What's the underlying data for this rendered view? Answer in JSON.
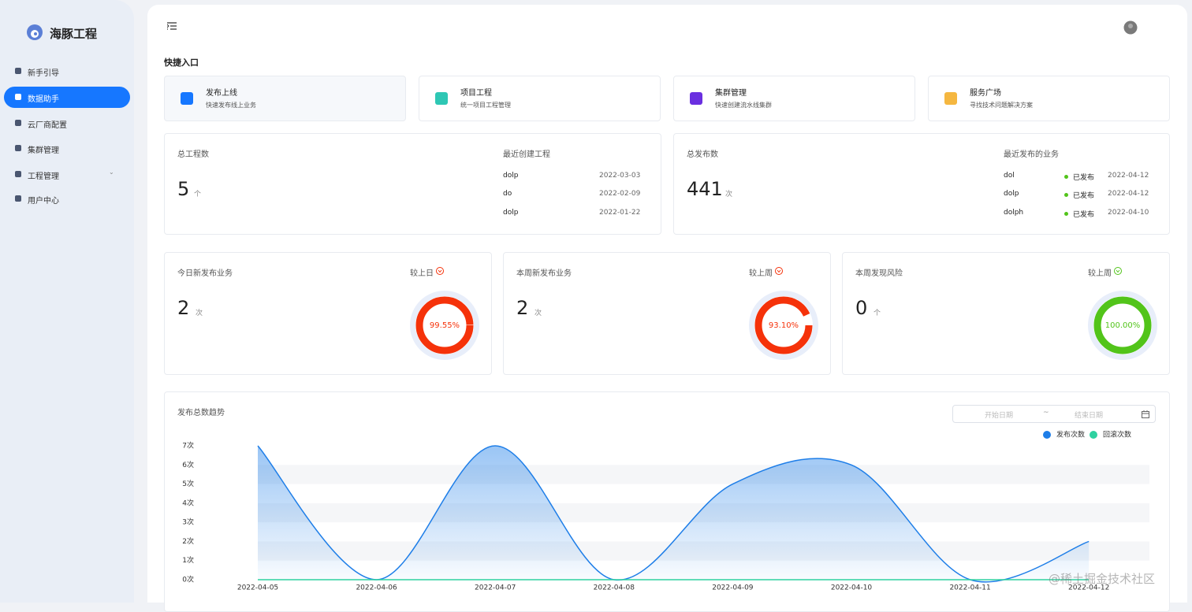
{
  "sidebar": {
    "logo": "海豚工程",
    "menu": [
      "新手引导",
      "数据助手",
      "云厂商配置",
      "集群管理",
      "工程管理",
      "用户中心"
    ]
  },
  "quick": {
    "title": "快捷入口",
    "cards": [
      {
        "title": "发布上线",
        "desc": "快速发布线上业务"
      },
      {
        "title": "项目工程",
        "desc": "统一项目工程管理"
      },
      {
        "title": "集群管理",
        "desc": "快速创建流水线集群"
      },
      {
        "title": "服务广场",
        "desc": "寻找技术问题解决方案"
      }
    ]
  },
  "projects": {
    "label": "总工程数",
    "value": 5,
    "unit": "个",
    "recent_label": "最近创建工程",
    "recent": [
      {
        "name": "dolp",
        "date": "2022-03-03"
      },
      {
        "name": "do",
        "date": "2022-02-09"
      },
      {
        "name": "dolp",
        "date": "2022-01-22"
      }
    ]
  },
  "releases": {
    "label": "总发布数",
    "value": 441,
    "unit": "次",
    "recent_label": "最近发布的业务",
    "recent": [
      {
        "name": "dol",
        "status": "已发布",
        "date": "2022-04-12"
      },
      {
        "name": "dolp",
        "status": "已发布",
        "date": "2022-04-12"
      },
      {
        "name": "dolph",
        "status": "已发布",
        "date": "2022-04-10"
      }
    ]
  },
  "rings": [
    {
      "label": "今日新发布业务",
      "value": 2,
      "unit": "次",
      "compare": "较上日",
      "percent": 99.55,
      "percent_label": "99.55%",
      "color": "#f5320a"
    },
    {
      "label": "本周新发布业务",
      "value": 2,
      "unit": "次",
      "compare": "较上周",
      "percent": 93.1,
      "percent_label": "93.10%",
      "color": "#f5320a"
    },
    {
      "label": "本周发现风险",
      "value": 0,
      "unit": "个",
      "compare": "较上周",
      "percent": 100,
      "percent_label": "100.00%",
      "color": "#52c41a"
    }
  ],
  "date_range": {
    "start": "开始日期",
    "separator": "~",
    "end": "结束日期"
  },
  "watermark": "@稀土掘金技术社区",
  "chart_data": {
    "type": "line",
    "title": "发布总数趋势",
    "categories": [
      "2022-04-05",
      "2022-04-06",
      "2022-04-07",
      "2022-04-08",
      "2022-04-09",
      "2022-04-10",
      "2022-04-11",
      "2022-04-12"
    ],
    "series": [
      {
        "name": "发布次数",
        "color": "#1e7ee8",
        "values": [
          7,
          0,
          7,
          0,
          5,
          6,
          0,
          2
        ]
      },
      {
        "name": "回滚次数",
        "color": "#2ed1a0",
        "values": [
          0,
          0,
          0,
          0,
          0,
          0,
          0,
          0
        ]
      }
    ],
    "ylim": [
      0,
      7
    ],
    "yticks": [
      {
        "value": 0,
        "label": "0次"
      },
      {
        "value": 1,
        "label": "1次"
      },
      {
        "value": 2,
        "label": "2次"
      },
      {
        "value": 3,
        "label": "3次"
      },
      {
        "value": 4,
        "label": "4次"
      },
      {
        "value": 5,
        "label": "5次"
      },
      {
        "value": 6,
        "label": "6次"
      },
      {
        "value": 7,
        "label": "7次"
      }
    ],
    "smooth": true,
    "area": true,
    "grid": "bands"
  }
}
